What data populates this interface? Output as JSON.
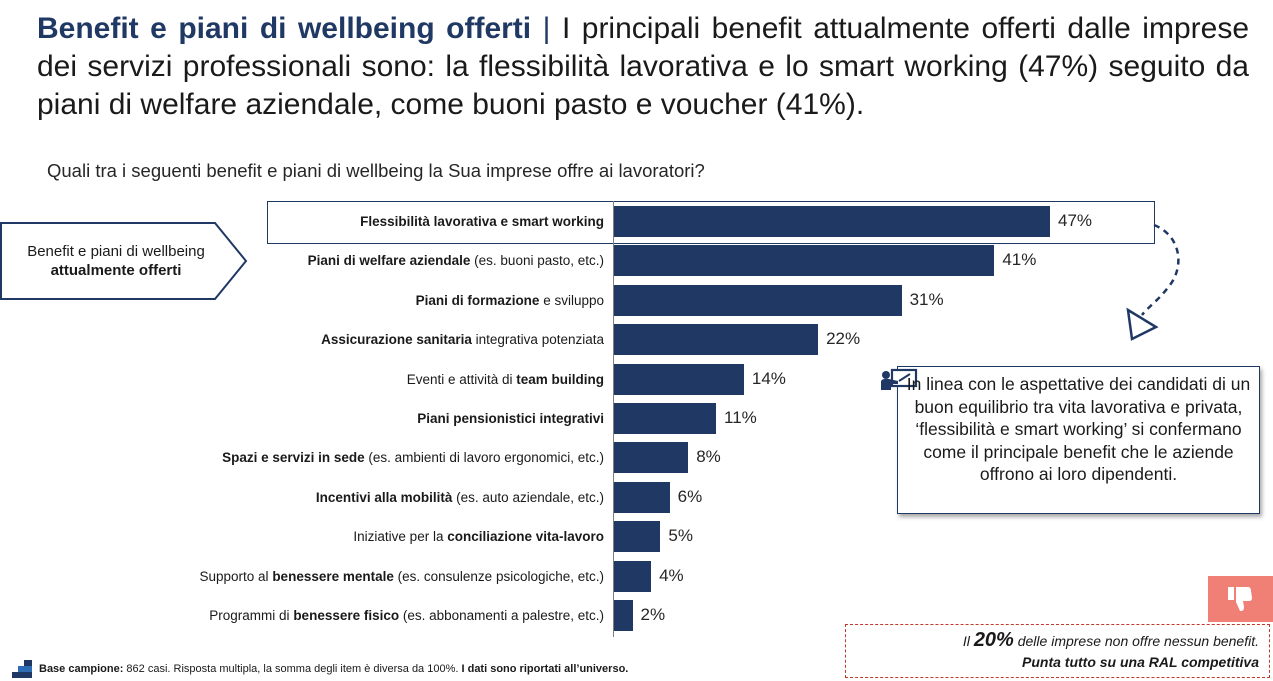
{
  "title": {
    "bold": "Benefit e piani di wellbeing offerti",
    "separator": "|",
    "text": "I principali benefit attualmente offerti dalle imprese dei servizi professionali sono: la flessibilità lavorativa e lo smart working (47%) seguito da piani di welfare aziendale, come buoni pasto e voucher (41%)."
  },
  "question": "Quali tra i seguenti benefit e piani di wellbeing la Sua imprese offre ai lavoratori?",
  "side_label": {
    "line1": "Benefit e piani di wellbeing",
    "line2": "attualmente offerti"
  },
  "chart_data": {
    "type": "bar",
    "orientation": "horizontal",
    "categories": [
      "Flessibilità lavorativa e smart working",
      "Piani di welfare aziendale (es. buoni pasto, etc.)",
      "Piani di formazione e sviluppo",
      "Assicurazione sanitaria integrativa potenziata",
      "Eventi e attività di team building",
      "Piani pensionistici integrativi",
      "Spazi e servizi in sede (es. ambienti di lavoro ergonomici, etc.)",
      "Incentivi alla mobilità (es. auto aziendale, etc.)",
      "Iniziative per la conciliazione vita-lavoro",
      "Supporto al benessere mentale (es. consulenze psicologiche, etc.)",
      "Programmi di benessere fisico (es. abbonamenti a palestre, etc.)"
    ],
    "labels": [
      {
        "pre": "",
        "bold": "Flessibilità lavorativa e smart working",
        "post": ""
      },
      {
        "pre": "",
        "bold": "Piani di welfare aziendale",
        "post": " (es. buoni pasto, etc.)"
      },
      {
        "pre": "",
        "bold": "Piani di formazione",
        "post": " e sviluppo"
      },
      {
        "pre": "",
        "bold": "Assicurazione sanitaria",
        "post": " integrativa potenziata"
      },
      {
        "pre": "Eventi e attività di ",
        "bold": "team building",
        "post": ""
      },
      {
        "pre": "",
        "bold": "Piani pensionistici integrativi",
        "post": ""
      },
      {
        "pre": "",
        "bold": "Spazi e servizi in sede",
        "post": " (es. ambienti di lavoro ergonomici, etc.)"
      },
      {
        "pre": "",
        "bold": "Incentivi alla mobilità",
        "post": " (es. auto aziendale, etc.)"
      },
      {
        "pre": "Iniziative per la ",
        "bold": "conciliazione vita-lavoro",
        "post": ""
      },
      {
        "pre": "Supporto al ",
        "bold": "benessere mentale",
        "post": " (es. consulenze psicologiche, etc.)"
      },
      {
        "pre": "Programmi di ",
        "bold": "benessere fisico",
        "post": " (es. abbonamenti a palestre, etc.)"
      }
    ],
    "values": [
      47,
      41,
      31,
      22,
      14,
      11,
      8,
      6,
      5,
      4,
      2
    ],
    "value_labels": [
      "47%",
      "41%",
      "31%",
      "22%",
      "14%",
      "11%",
      "8%",
      "6%",
      "5%",
      "4%",
      "2%"
    ],
    "unit": "%",
    "xlim": [
      0,
      100
    ],
    "bar_color": "#1f3864",
    "highlighted_index": 0
  },
  "callout": {
    "icon": "presentation-board-icon",
    "text": "In linea con le aspettative dei candidati di un buon equilibrio tra vita lavorativa e privata, ‘flessibilità e smart working’ si confermano come il principale benefit che le aziende offrono ai loro dipendenti."
  },
  "note": {
    "pre": "Il ",
    "big": "20%",
    "post": " delle imprese non offre nessun benefit.",
    "line2": "Punta tutto su una RAL competitiva",
    "icon": "thumbs-down-icon",
    "accent": "#f08075",
    "border": "#c0392b"
  },
  "footnote": {
    "bold1": "Base campione:",
    "text": " 862 casi. Risposta multipla, la somma degli item è diversa da 100%. ",
    "bold2": "I dati sono riportati all’universo.",
    "logo": "stairs-logo-icon"
  }
}
